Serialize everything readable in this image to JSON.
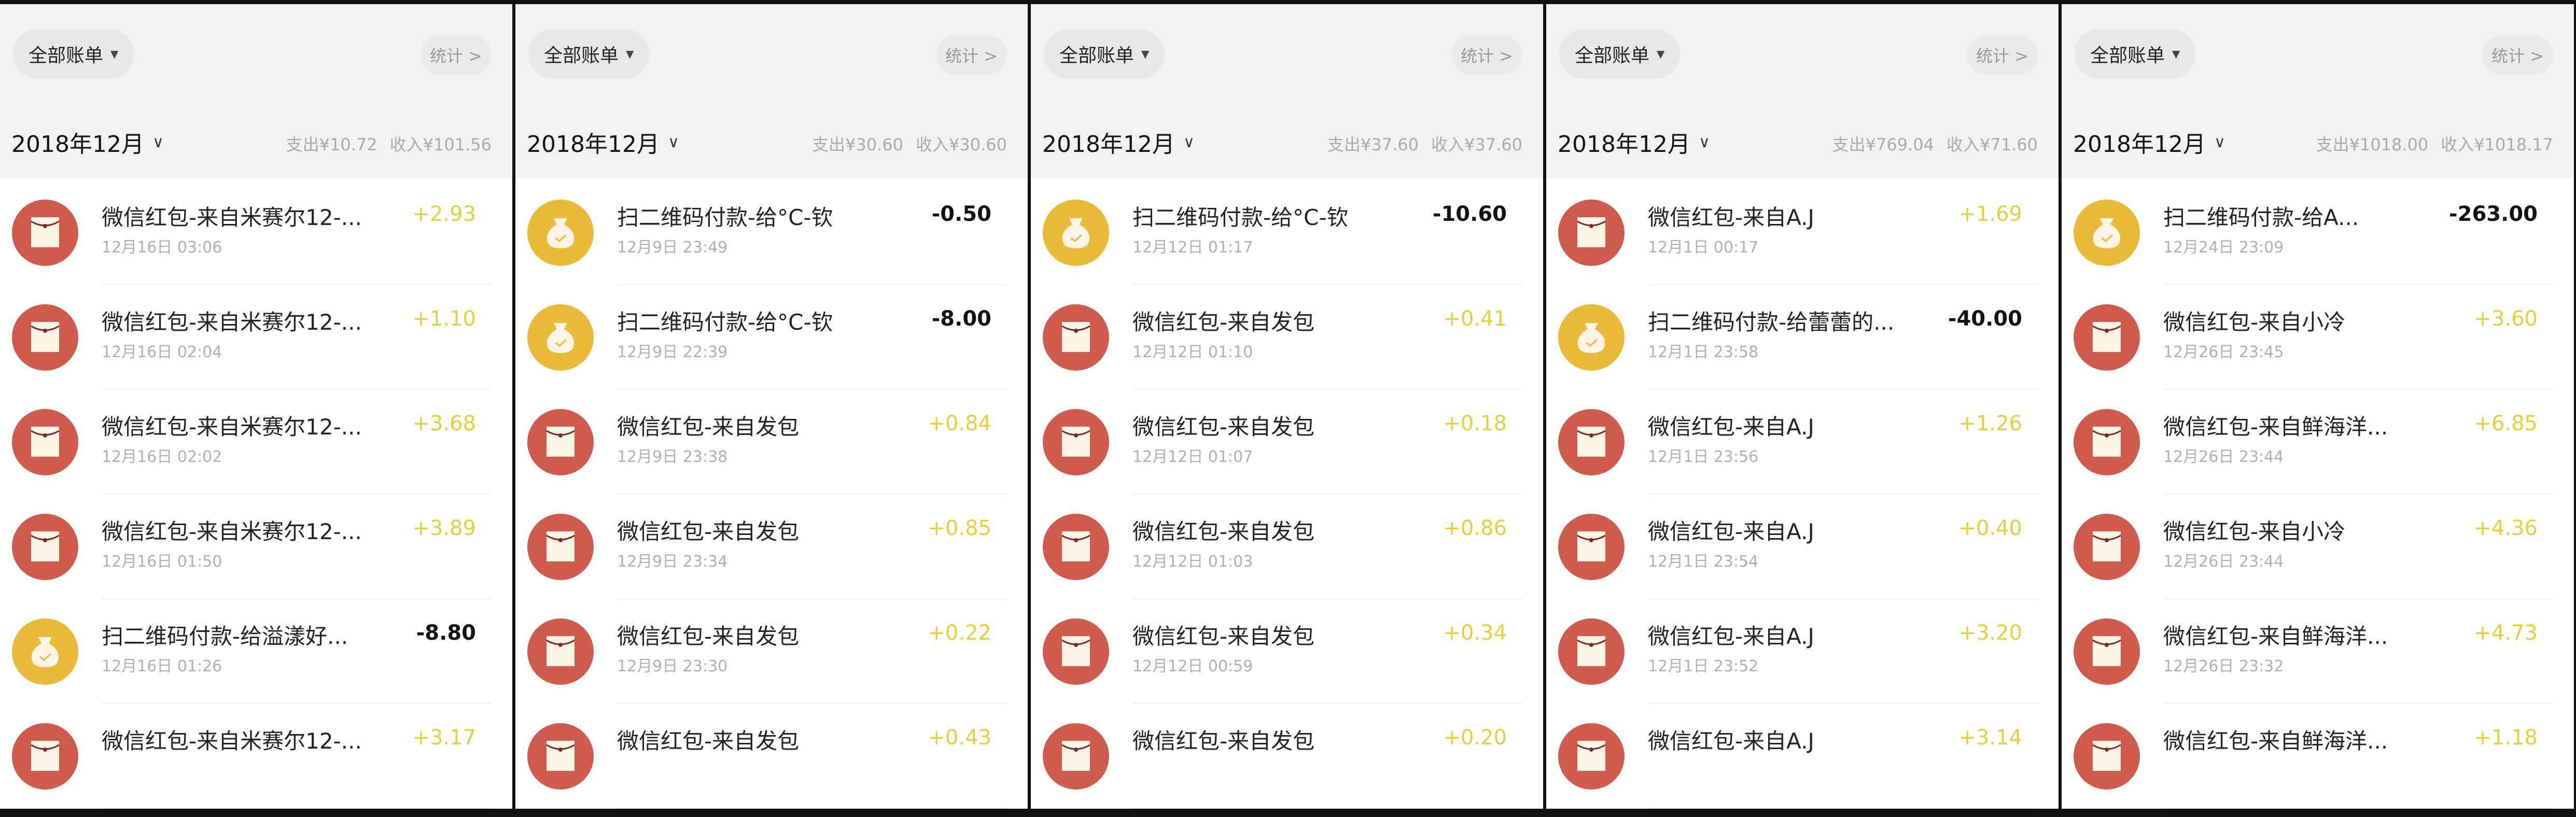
{
  "colors": {
    "red_packet": "#cf5b4f",
    "qr_payment": "#e9b93a",
    "income_amount": "#e6cf3c",
    "expense_amount": "#111111"
  },
  "panels": [
    {
      "filter_label": "全部账单",
      "stats_label": "统计 >",
      "month": "2018年12月",
      "expense": "支出¥10.72",
      "income": "收入¥101.56",
      "rows": [
        {
          "type": "red-packet",
          "title": "微信红包-来自米赛尔12-...",
          "date": "12月16日 03:06",
          "amount": "+2.93"
        },
        {
          "type": "red-packet",
          "title": "微信红包-来自米赛尔12-...",
          "date": "12月16日 02:04",
          "amount": "+1.10"
        },
        {
          "type": "red-packet",
          "title": "微信红包-来自米赛尔12-...",
          "date": "12月16日 02:02",
          "amount": "+3.68"
        },
        {
          "type": "red-packet",
          "title": "微信红包-来自米赛尔12-...",
          "date": "12月16日 01:50",
          "amount": "+3.89"
        },
        {
          "type": "qr-payment",
          "title": "扫二维码付款-给溢漾好...",
          "date": "12月16日 01:26",
          "amount": "-8.80"
        },
        {
          "type": "red-packet",
          "title": "微信红包-来自米赛尔12-...",
          "date": "",
          "amount": "+3.17"
        }
      ]
    },
    {
      "filter_label": "全部账单",
      "stats_label": "统计 >",
      "month": "2018年12月",
      "expense": "支出¥30.60",
      "income": "收入¥30.60",
      "rows": [
        {
          "type": "qr-payment",
          "title": "扫二维码付款-给°C-钦",
          "date": "12月9日 23:49",
          "amount": "-0.50"
        },
        {
          "type": "qr-payment",
          "title": "扫二维码付款-给°C-钦",
          "date": "12月9日 22:39",
          "amount": "-8.00"
        },
        {
          "type": "red-packet",
          "title": "微信红包-来自发包",
          "date": "12月9日 23:38",
          "amount": "+0.84"
        },
        {
          "type": "red-packet",
          "title": "微信红包-来自发包",
          "date": "12月9日 23:34",
          "amount": "+0.85"
        },
        {
          "type": "red-packet",
          "title": "微信红包-来自发包",
          "date": "12月9日 23:30",
          "amount": "+0.22"
        },
        {
          "type": "red-packet",
          "title": "微信红包-来自发包",
          "date": "",
          "amount": "+0.43"
        }
      ]
    },
    {
      "filter_label": "全部账单",
      "stats_label": "统计 >",
      "month": "2018年12月",
      "expense": "支出¥37.60",
      "income": "收入¥37.60",
      "rows": [
        {
          "type": "qr-payment",
          "title": "扫二维码付款-给°C-钦",
          "date": "12月12日 01:17",
          "amount": "-10.60"
        },
        {
          "type": "red-packet",
          "title": "微信红包-来自发包",
          "date": "12月12日 01:10",
          "amount": "+0.41"
        },
        {
          "type": "red-packet",
          "title": "微信红包-来自发包",
          "date": "12月12日 01:07",
          "amount": "+0.18"
        },
        {
          "type": "red-packet",
          "title": "微信红包-来自发包",
          "date": "12月12日 01:03",
          "amount": "+0.86"
        },
        {
          "type": "red-packet",
          "title": "微信红包-来自发包",
          "date": "12月12日 00:59",
          "amount": "+0.34"
        },
        {
          "type": "red-packet",
          "title": "微信红包-来自发包",
          "date": "",
          "amount": "+0.20"
        }
      ]
    },
    {
      "filter_label": "全部账单",
      "stats_label": "统计 >",
      "month": "2018年12月",
      "expense": "支出¥769.04",
      "income": "收入¥71.60",
      "rows": [
        {
          "type": "red-packet",
          "title": "微信红包-来自A.J",
          "date": "12月1日 00:17",
          "amount": "+1.69"
        },
        {
          "type": "qr-payment",
          "title": "扫二维码付款-给蕾蕾的...",
          "date": "12月1日 23:58",
          "amount": "-40.00"
        },
        {
          "type": "red-packet",
          "title": "微信红包-来自A.J",
          "date": "12月1日 23:56",
          "amount": "+1.26"
        },
        {
          "type": "red-packet",
          "title": "微信红包-来自A.J",
          "date": "12月1日 23:54",
          "amount": "+0.40"
        },
        {
          "type": "red-packet",
          "title": "微信红包-来自A.J",
          "date": "12月1日 23:52",
          "amount": "+3.20"
        },
        {
          "type": "red-packet",
          "title": "微信红包-来自A.J",
          "date": "",
          "amount": "+3.14"
        }
      ]
    },
    {
      "filter_label": "全部账单",
      "stats_label": "统计 >",
      "month": "2018年12月",
      "expense": "支出¥1018.00",
      "income": "收入¥1018.17",
      "rows": [
        {
          "type": "qr-payment",
          "title": "扫二维码付款-给A...",
          "date": "12月24日 23:09",
          "amount": "-263.00"
        },
        {
          "type": "red-packet",
          "title": "微信红包-来自小冷",
          "date": "12月26日 23:45",
          "amount": "+3.60"
        },
        {
          "type": "red-packet",
          "title": "微信红包-来自鲜海洋...",
          "date": "12月26日 23:44",
          "amount": "+6.85"
        },
        {
          "type": "red-packet",
          "title": "微信红包-来自小冷",
          "date": "12月26日 23:44",
          "amount": "+4.36"
        },
        {
          "type": "red-packet",
          "title": "微信红包-来自鲜海洋...",
          "date": "12月26日 23:32",
          "amount": "+4.73"
        },
        {
          "type": "red-packet",
          "title": "微信红包-来自鲜海洋...",
          "date": "",
          "amount": "+1.18"
        }
      ]
    }
  ]
}
